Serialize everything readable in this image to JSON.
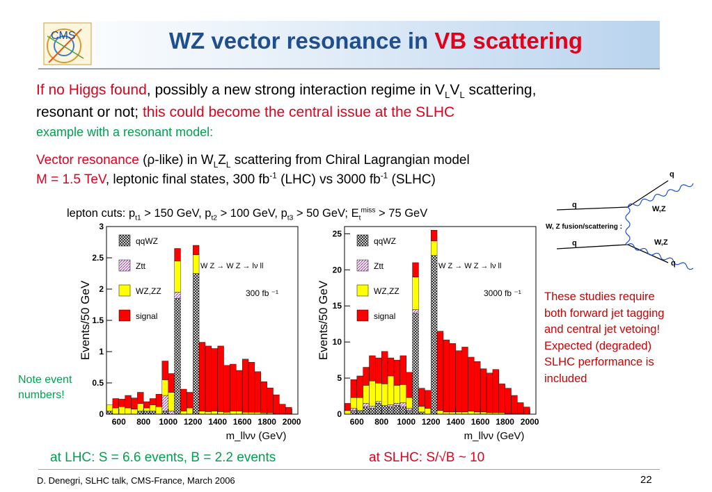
{
  "title": {
    "part1": "WZ vector resonance in ",
    "part2": "VB scattering"
  },
  "intro": {
    "line1_red": "If no Higgs found",
    "line1_a": ", possibly a new strong interaction regime in V",
    "sub_L": "L",
    "line1_b": "V",
    "line1_c": " scattering,",
    "line2_a": "resonant or not; ",
    "line2_red": "this could become the central issue at the SLHC",
    "line3_green": "example with a resonant model:"
  },
  "model": {
    "vec_red": "Vector resonance",
    "vec_a": " (",
    "rho": "ρ",
    "vec_b": "-like) in W",
    "vec_c": "Z",
    "vec_d": " scattering from Chiral Lagrangian model",
    "mass_red": "M = 1.5 TeV",
    "mass_a": ", leptonic final states, 300 fb",
    "sup_m1": "-1",
    "mass_b": " (LHC) vs  3000 fb",
    "mass_c": " (SLHC)"
  },
  "cuts": {
    "a": "lepton cuts: p",
    "t1": "t1",
    "b": " > 150 GeV, p",
    "t2": "t2",
    "c": " > 100 GeV, p",
    "t3": "t3",
    "d": " > 50 GeV; E",
    "t": "t",
    "miss": "miss",
    "e": " > 75 GeV"
  },
  "diagram": {
    "q_in_top": "q",
    "q_in_bot": "q",
    "q_out_top": "q",
    "q_out_bot": "q",
    "wz_top": "W,Z",
    "wz_bot": "W,Z",
    "label": "W, Z fusion/scattering :"
  },
  "note": {
    "line1": "Note event",
    "line2": "numbers!"
  },
  "studies": [
    "These studies require",
    "both forward jet tagging",
    "and central jet vetoing!",
    "Expected (degraded)",
    "SLHC performance is",
    "included"
  ],
  "results": {
    "lhc": "at LHC: S = 6.6 events, B = 2.2 events",
    "slhc": "at SLHC: S/√B ~ 10"
  },
  "footer": "D. Denegri, SLHC talk, CMS-France, March 2006",
  "page_number": "22",
  "logo_text": "CMS",
  "chart_data": [
    {
      "type": "bar",
      "ylabel": "Events/50 GeV",
      "xlabel": "m_llνν (GeV)",
      "x_ticks": [
        600,
        800,
        1000,
        1200,
        1400,
        1600,
        1800,
        2000
      ],
      "y_ticks": [
        "0",
        "0.5",
        "1",
        "1.5",
        "2",
        "2.5",
        "3"
      ],
      "xlim": [
        500,
        2050
      ],
      "ylim": [
        0,
        3
      ],
      "legend": [
        {
          "name": "qqWZ",
          "color": "#555555",
          "pattern": "checker"
        },
        {
          "name": "Ztt",
          "color": "#cc66cc",
          "pattern": "hatch"
        },
        {
          "name": "WZ,ZZ",
          "color": "#ffff00"
        },
        {
          "name": "signal",
          "color": "#ff0000"
        }
      ],
      "process": "W Z → W Z → lν ll",
      "luminosity": "300 fb ⁻¹",
      "categories": [
        525,
        575,
        625,
        675,
        725,
        775,
        825,
        875,
        925,
        975,
        1025,
        1075,
        1125,
        1175,
        1225,
        1275,
        1325,
        1375,
        1425,
        1475,
        1525,
        1575,
        1625,
        1675,
        1725,
        1775,
        1825,
        1875,
        1925,
        1975
      ],
      "series": [
        {
          "name": "qqWZ",
          "values": [
            0.05,
            0.0,
            0.0,
            0.0,
            0.0,
            0.05,
            0.05,
            0.05,
            0.0,
            0.05,
            0.0,
            1.85,
            0.0,
            0.0,
            2.25,
            0.0,
            0.0,
            0.0,
            0.0,
            0.0,
            0.0,
            0.0,
            0.0,
            0.0,
            0.0,
            0.0,
            0.0,
            0.0,
            0.0,
            0.0
          ]
        },
        {
          "name": "Ztt",
          "values": [
            0.0,
            0.0,
            0.0,
            0.0,
            0.0,
            0.0,
            0.0,
            0.0,
            0.0,
            0.25,
            0.05,
            0.1,
            0.0,
            0.0,
            0.0,
            0.0,
            0.0,
            0.0,
            0.0,
            0.0,
            0.0,
            0.0,
            0.0,
            0.0,
            0.0,
            0.0,
            0.0,
            0.0,
            0.0,
            0.0
          ]
        },
        {
          "name": "WZ,ZZ",
          "values": [
            0.1,
            0.1,
            0.12,
            0.1,
            0.08,
            0.12,
            0.05,
            0.1,
            0.12,
            0.25,
            0.3,
            0.5,
            0.05,
            0.1,
            0.3,
            0.05,
            0.04,
            0.05,
            0.04,
            0.03,
            0.05,
            0.05,
            0.03,
            0.03,
            0.03,
            0.02,
            0.02,
            0.01,
            0.01,
            0.01
          ]
        },
        {
          "name": "signal",
          "values": [
            0.0,
            0.15,
            0.12,
            0.2,
            0.18,
            0.18,
            0.1,
            0.1,
            0.2,
            0.3,
            0.3,
            0.2,
            0.35,
            0.25,
            0.15,
            1.1,
            1.05,
            1.0,
            1.05,
            0.75,
            0.75,
            0.65,
            0.85,
            0.8,
            0.65,
            0.5,
            0.4,
            0.3,
            0.15,
            0.1
          ]
        }
      ]
    },
    {
      "type": "bar",
      "ylabel": "Events/50 GeV",
      "xlabel": "m_llνν (GeV)",
      "x_ticks": [
        600,
        800,
        1000,
        1200,
        1400,
        1600,
        1800,
        2000
      ],
      "y_ticks": [
        "0",
        "5",
        "10",
        "15",
        "20",
        "25"
      ],
      "xlim": [
        500,
        2050
      ],
      "ylim": [
        0,
        26
      ],
      "legend": [
        {
          "name": "qqWZ",
          "color": "#555555",
          "pattern": "checker"
        },
        {
          "name": "Ztt",
          "color": "#cc66cc",
          "pattern": "hatch"
        },
        {
          "name": "WZ,ZZ",
          "color": "#ffff00"
        },
        {
          "name": "signal",
          "color": "#ff0000"
        }
      ],
      "process": "W Z → W Z → lν ll",
      "luminosity": "3000 fb ⁻¹",
      "categories": [
        525,
        575,
        625,
        675,
        725,
        775,
        825,
        875,
        925,
        975,
        1025,
        1075,
        1125,
        1175,
        1225,
        1275,
        1325,
        1375,
        1425,
        1475,
        1525,
        1575,
        1625,
        1675,
        1725,
        1775,
        1825,
        1875,
        1925,
        1975
      ],
      "series": [
        {
          "name": "qqWZ",
          "values": [
            0.0,
            0.5,
            0.5,
            1.0,
            0.8,
            1.5,
            1.2,
            1.0,
            1.2,
            1.0,
            0.5,
            14.0,
            0.3,
            0.0,
            22.0,
            0.0,
            0.0,
            0.0,
            0.0,
            0.0,
            0.0,
            0.0,
            0.0,
            0.0,
            0.0,
            0.0,
            0.0,
            0.0,
            0.0,
            0.0
          ]
        },
        {
          "name": "Ztt",
          "values": [
            0.0,
            0.3,
            0.0,
            0.5,
            0.3,
            0.3,
            0.0,
            0.3,
            0.3,
            0.6,
            0.3,
            0.5,
            0.0,
            0.0,
            0.0,
            0.0,
            0.0,
            0.0,
            0.0,
            0.0,
            0.0,
            0.0,
            0.0,
            0.0,
            0.0,
            0.0,
            0.0,
            0.0,
            0.0,
            0.0
          ]
        },
        {
          "name": "WZ,ZZ",
          "values": [
            0.5,
            1.5,
            1.8,
            2.5,
            3.5,
            2.5,
            3.0,
            4.0,
            2.5,
            2.5,
            1.5,
            4.5,
            0.8,
            0.8,
            2.0,
            0.5,
            0.3,
            0.3,
            0.3,
            0.3,
            0.4,
            0.3,
            0.3,
            0.2,
            0.2,
            0.2,
            0.1,
            0.1,
            0.1,
            0.0
          ]
        },
        {
          "name": "signal",
          "values": [
            1.0,
            2.5,
            3.0,
            2.5,
            3.5,
            3.5,
            4.5,
            2.5,
            3.5,
            4.0,
            3.5,
            2.0,
            2.5,
            2.5,
            1.5,
            11.0,
            10.0,
            9.5,
            8.5,
            9.0,
            7.5,
            7.0,
            6.0,
            5.5,
            6.0,
            4.0,
            3.5,
            2.5,
            1.5,
            1.0
          ]
        }
      ]
    }
  ]
}
